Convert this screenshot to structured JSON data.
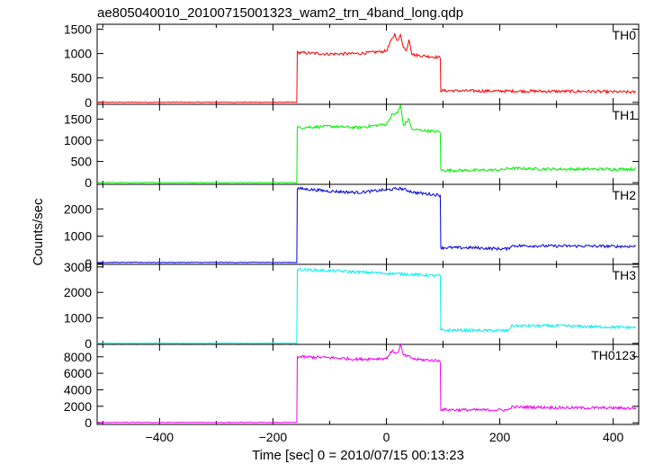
{
  "chart_data": {
    "type": "line",
    "title": "ae805040010_20100715001323_wam2_trn_4band_long.qdp",
    "xlabel": "Time [sec] 0 = 2010/07/15 00:13:23",
    "ylabel": "Counts/sec",
    "xlim": [
      -510,
      445
    ],
    "xticks": [
      -400,
      -200,
      0,
      200,
      400
    ],
    "grid": false,
    "panels": [
      {
        "name": "TH0",
        "color": "#ff0000",
        "ylim": [
          -40,
          1600
        ],
        "yticks": [
          0,
          500,
          1000,
          1500
        ],
        "series": {
          "x": [
            -510,
            -158,
            -157,
            -100,
            -50,
            0,
            10,
            15,
            20,
            25,
            30,
            35,
            40,
            45,
            50,
            95,
            96,
            150,
            200,
            250,
            300,
            350,
            400,
            440
          ],
          "y": [
            2,
            2,
            1020,
            990,
            1000,
            1050,
            1300,
            1400,
            1250,
            1380,
            1150,
            1050,
            1300,
            1000,
            970,
            920,
            240,
            235,
            230,
            230,
            225,
            225,
            215,
            210
          ]
        }
      },
      {
        "name": "TH1",
        "color": "#00ee00",
        "ylim": [
          -40,
          1850
        ],
        "yticks": [
          0,
          500,
          1000,
          1500
        ],
        "series": {
          "x": [
            -510,
            -158,
            -157,
            -100,
            -50,
            0,
            10,
            20,
            25,
            30,
            40,
            45,
            50,
            95,
            96,
            150,
            200,
            220,
            250,
            300,
            350,
            400,
            440
          ],
          "y": [
            2,
            2,
            1300,
            1330,
            1300,
            1380,
            1600,
            1650,
            1830,
            1350,
            1500,
            1250,
            1250,
            1200,
            290,
            290,
            300,
            340,
            330,
            320,
            320,
            320,
            320
          ]
        }
      },
      {
        "name": "TH2",
        "color": "#0000dd",
        "ylim": [
          -30,
          2900
        ],
        "yticks": [
          0,
          1000,
          2000
        ],
        "series": {
          "x": [
            -510,
            -158,
            -157,
            -100,
            -50,
            0,
            25,
            50,
            95,
            96,
            150,
            200,
            215,
            220,
            250,
            300,
            350,
            400,
            440
          ],
          "y": [
            40,
            40,
            2750,
            2650,
            2600,
            2700,
            2750,
            2600,
            2500,
            580,
            580,
            540,
            540,
            650,
            650,
            640,
            640,
            630,
            630
          ]
        }
      },
      {
        "name": "TH3",
        "color": "#00eeee",
        "ylim": [
          -40,
          3100
        ],
        "yticks": [
          0,
          1000,
          2000,
          3000
        ],
        "series": {
          "x": [
            -510,
            -158,
            -157,
            -100,
            -50,
            0,
            50,
            95,
            96,
            150,
            200,
            215,
            220,
            250,
            300,
            350,
            400,
            440
          ],
          "y": [
            5,
            5,
            2900,
            2850,
            2800,
            2750,
            2700,
            2650,
            520,
            510,
            500,
            500,
            680,
            690,
            690,
            660,
            640,
            620
          ]
        }
      },
      {
        "name": "TH0123",
        "color": "#ee00ee",
        "ylim": [
          -200,
          9500
        ],
        "yticks": [
          0,
          2000,
          4000,
          6000,
          8000
        ],
        "series": {
          "x": [
            -510,
            -158,
            -157,
            -100,
            -50,
            0,
            10,
            20,
            25,
            30,
            40,
            50,
            95,
            96,
            150,
            200,
            215,
            220,
            250,
            300,
            350,
            400,
            440
          ],
          "y": [
            40,
            40,
            8000,
            7900,
            7700,
            7800,
            8700,
            8400,
            9400,
            8200,
            8000,
            7700,
            7500,
            1600,
            1550,
            1550,
            1550,
            1900,
            1900,
            1850,
            1800,
            1800,
            1750
          ]
        }
      }
    ]
  }
}
